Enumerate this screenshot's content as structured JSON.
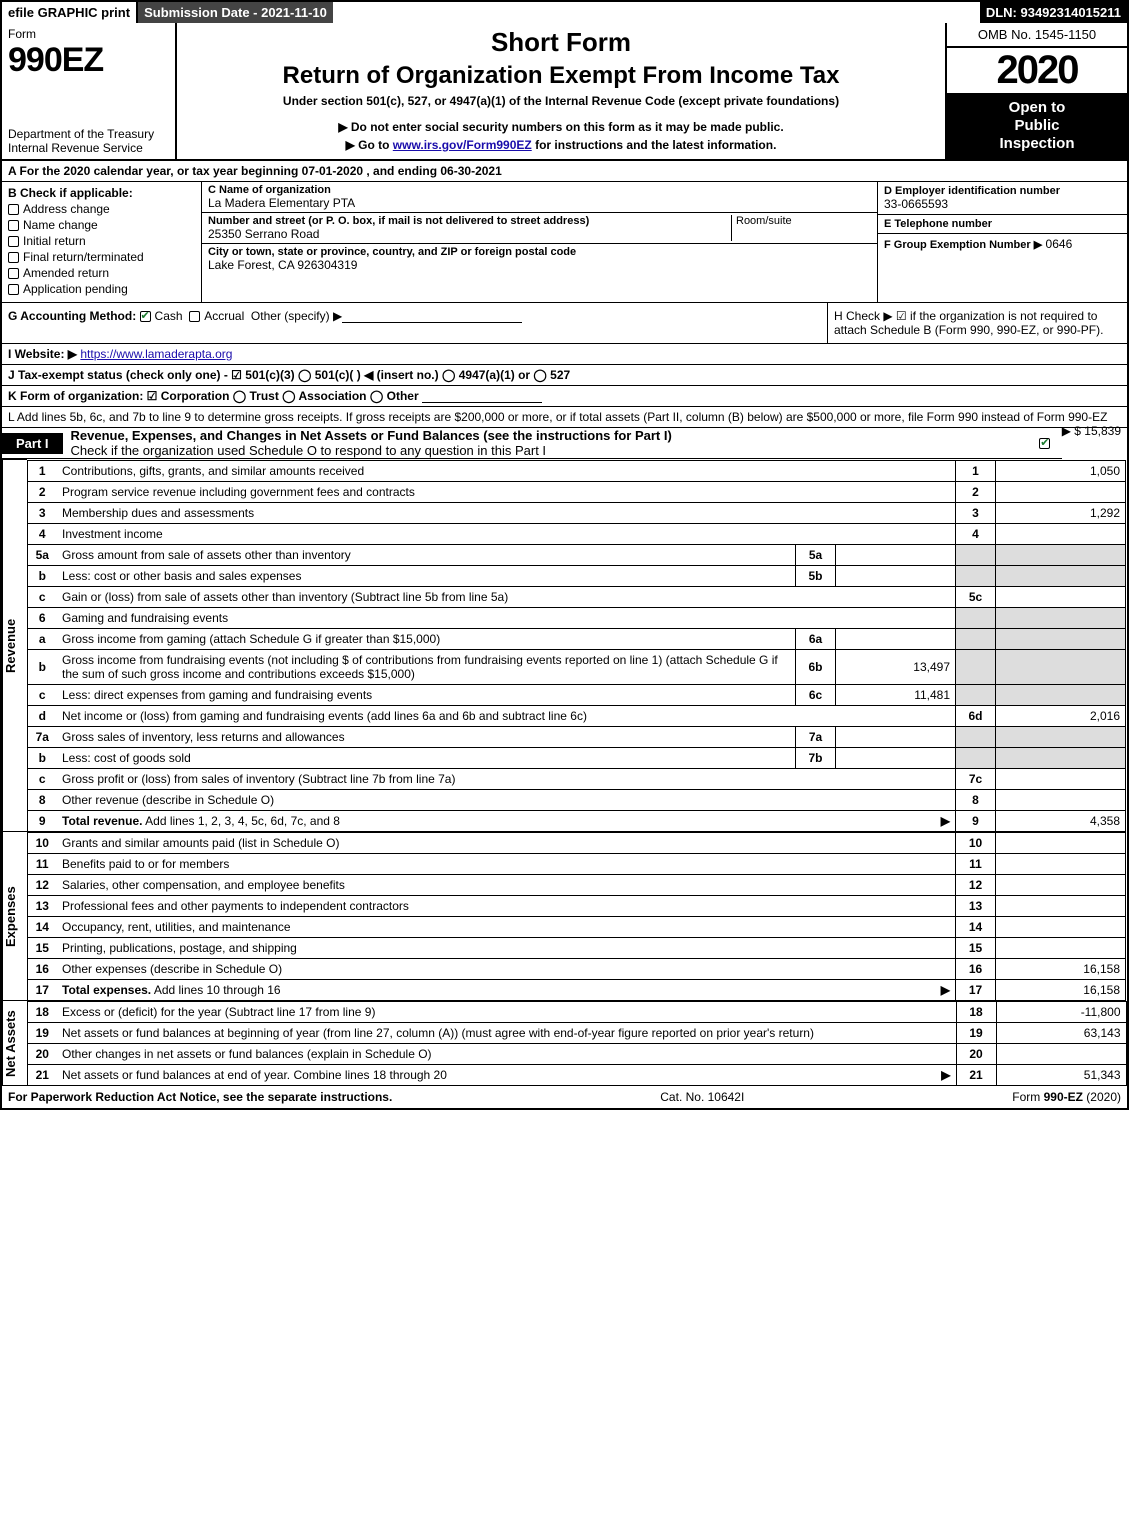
{
  "top_bar": {
    "efile": "efile GRAPHIC print",
    "submission": "Submission Date - 2021-11-10",
    "dln": "DLN: 93492314015211"
  },
  "header": {
    "form_label": "Form",
    "form_number": "990EZ",
    "dept": "Department of the Treasury\nInternal Revenue Service",
    "short_form": "Short Form",
    "title": "Return of Organization Exempt From Income Tax",
    "subtitle": "Under section 501(c), 527, or 4947(a)(1) of the Internal Revenue Code (except private foundations)",
    "do_not": "▶ Do not enter social security numbers on this form as it may be made public.",
    "goto_pre": "▶ Go to ",
    "goto_link": "www.irs.gov/Form990EZ",
    "goto_post": " for instructions and the latest information.",
    "omb": "OMB No. 1545-1150",
    "year": "2020",
    "inspection": "Open to\nPublic\nInspection"
  },
  "line_a": "A For the 2020 calendar year, or tax year beginning 07-01-2020 , and ending 06-30-2021",
  "box_b": {
    "label": "B  Check if applicable:",
    "options": [
      "Address change",
      "Name change",
      "Initial return",
      "Final return/terminated",
      "Amended return",
      "Application pending"
    ]
  },
  "org": {
    "c_label": "C Name of organization",
    "c_name": "La Madera Elementary PTA",
    "street_label": "Number and street (or P. O. box, if mail is not delivered to street address)",
    "room_label": "Room/suite",
    "street": "25350 Serrano Road",
    "city_label": "City or town, state or province, country, and ZIP or foreign postal code",
    "city": "Lake Forest, CA  926304319"
  },
  "right_col": {
    "d_label": "D Employer identification number",
    "d_value": "33-0665593",
    "e_label": "E Telephone number",
    "e_value": "",
    "f_label": "F Group Exemption Number  ▶",
    "f_value": "0646"
  },
  "g_label": "G Accounting Method:",
  "g_cash": "Cash",
  "g_accrual": "Accrual",
  "g_other": "Other (specify) ▶",
  "h_text": "H  Check ▶  ☑  if the organization is not required to attach Schedule B (Form 990, 990-EZ, or 990-PF).",
  "i_label": "I Website: ▶",
  "i_url": "https://www.lamaderapta.org",
  "j_label": "J Tax-exempt status (check only one) -  ☑ 501(c)(3)  ◯ 501(c)(  ) ◀ (insert no.)  ◯ 4947(a)(1) or  ◯ 527",
  "k_label": "K Form of organization:   ☑ Corporation   ◯ Trust   ◯ Association   ◯ Other",
  "l_text": "L Add lines 5b, 6c, and 7b to line 9 to determine gross receipts. If gross receipts are $200,000 or more, or if total assets (Part II, column (B) below) are $500,000 or more, file Form 990 instead of Form 990-EZ",
  "l_value": "▶ $ 15,839",
  "part1": {
    "label": "Part I",
    "title": "Revenue, Expenses, and Changes in Net Assets or Fund Balances (see the instructions for Part I)",
    "check_note": "Check if the organization used Schedule O to respond to any question in this Part I"
  },
  "revenue": {
    "side": "Revenue",
    "rows": [
      {
        "n": "1",
        "desc": "Contributions, gifts, grants, and similar amounts received",
        "rn": "1",
        "rv": "1,050"
      },
      {
        "n": "2",
        "desc": "Program service revenue including government fees and contracts",
        "rn": "2",
        "rv": ""
      },
      {
        "n": "3",
        "desc": "Membership dues and assessments",
        "rn": "3",
        "rv": "1,292"
      },
      {
        "n": "4",
        "desc": "Investment income",
        "rn": "4",
        "rv": ""
      },
      {
        "n": "5a",
        "desc": "Gross amount from sale of assets other than inventory",
        "sn": "5a",
        "sv": "",
        "shaded": true
      },
      {
        "n": "b",
        "desc": "Less: cost or other basis and sales expenses",
        "sn": "5b",
        "sv": "",
        "shaded": true
      },
      {
        "n": "c",
        "desc": "Gain or (loss) from sale of assets other than inventory (Subtract line 5b from line 5a)",
        "rn": "5c",
        "rv": ""
      },
      {
        "n": "6",
        "desc": "Gaming and fundraising events",
        "shaded": true,
        "noresult": true
      },
      {
        "n": "a",
        "desc": "Gross income from gaming (attach Schedule G if greater than $15,000)",
        "sn": "6a",
        "sv": "",
        "shaded": true
      },
      {
        "n": "b",
        "desc": "Gross income from fundraising events (not including $                 of contributions from fundraising events reported on line 1) (attach Schedule G if the sum of such gross income and contributions exceeds $15,000)",
        "sn": "6b",
        "sv": "13,497",
        "shaded": true
      },
      {
        "n": "c",
        "desc": "Less: direct expenses from gaming and fundraising events",
        "sn": "6c",
        "sv": "11,481",
        "shaded": true
      },
      {
        "n": "d",
        "desc": "Net income or (loss) from gaming and fundraising events (add lines 6a and 6b and subtract line 6c)",
        "rn": "6d",
        "rv": "2,016"
      },
      {
        "n": "7a",
        "desc": "Gross sales of inventory, less returns and allowances",
        "sn": "7a",
        "sv": "",
        "shaded": true
      },
      {
        "n": "b",
        "desc": "Less: cost of goods sold",
        "sn": "7b",
        "sv": "",
        "shaded": true
      },
      {
        "n": "c",
        "desc": "Gross profit or (loss) from sales of inventory (Subtract line 7b from line 7a)",
        "rn": "7c",
        "rv": ""
      },
      {
        "n": "8",
        "desc": "Other revenue (describe in Schedule O)",
        "rn": "8",
        "rv": ""
      },
      {
        "n": "9",
        "desc": "Total revenue. Add lines 1, 2, 3, 4, 5c, 6d, 7c, and 8",
        "rn": "9",
        "rv": "4,358",
        "arrow": true,
        "bold": true
      }
    ]
  },
  "expenses": {
    "side": "Expenses",
    "rows": [
      {
        "n": "10",
        "desc": "Grants and similar amounts paid (list in Schedule O)",
        "rn": "10",
        "rv": ""
      },
      {
        "n": "11",
        "desc": "Benefits paid to or for members",
        "rn": "11",
        "rv": ""
      },
      {
        "n": "12",
        "desc": "Salaries, other compensation, and employee benefits",
        "rn": "12",
        "rv": ""
      },
      {
        "n": "13",
        "desc": "Professional fees and other payments to independent contractors",
        "rn": "13",
        "rv": ""
      },
      {
        "n": "14",
        "desc": "Occupancy, rent, utilities, and maintenance",
        "rn": "14",
        "rv": ""
      },
      {
        "n": "15",
        "desc": "Printing, publications, postage, and shipping",
        "rn": "15",
        "rv": ""
      },
      {
        "n": "16",
        "desc": "Other expenses (describe in Schedule O)",
        "rn": "16",
        "rv": "16,158"
      },
      {
        "n": "17",
        "desc": "Total expenses. Add lines 10 through 16",
        "rn": "17",
        "rv": "16,158",
        "arrow": true,
        "bold": true
      }
    ]
  },
  "netassets": {
    "side": "Net Assets",
    "rows": [
      {
        "n": "18",
        "desc": "Excess or (deficit) for the year (Subtract line 17 from line 9)",
        "rn": "18",
        "rv": "-11,800"
      },
      {
        "n": "19",
        "desc": "Net assets or fund balances at beginning of year (from line 27, column (A)) (must agree with end-of-year figure reported on prior year's return)",
        "rn": "19",
        "rv": "63,143"
      },
      {
        "n": "20",
        "desc": "Other changes in net assets or fund balances (explain in Schedule O)",
        "rn": "20",
        "rv": ""
      },
      {
        "n": "21",
        "desc": "Net assets or fund balances at end of year. Combine lines 18 through 20",
        "rn": "21",
        "rv": "51,343",
        "arrow": true
      }
    ]
  },
  "footer": {
    "left": "For Paperwork Reduction Act Notice, see the separate instructions.",
    "center": "Cat. No. 10642I",
    "right": "Form 990-EZ (2020)"
  }
}
